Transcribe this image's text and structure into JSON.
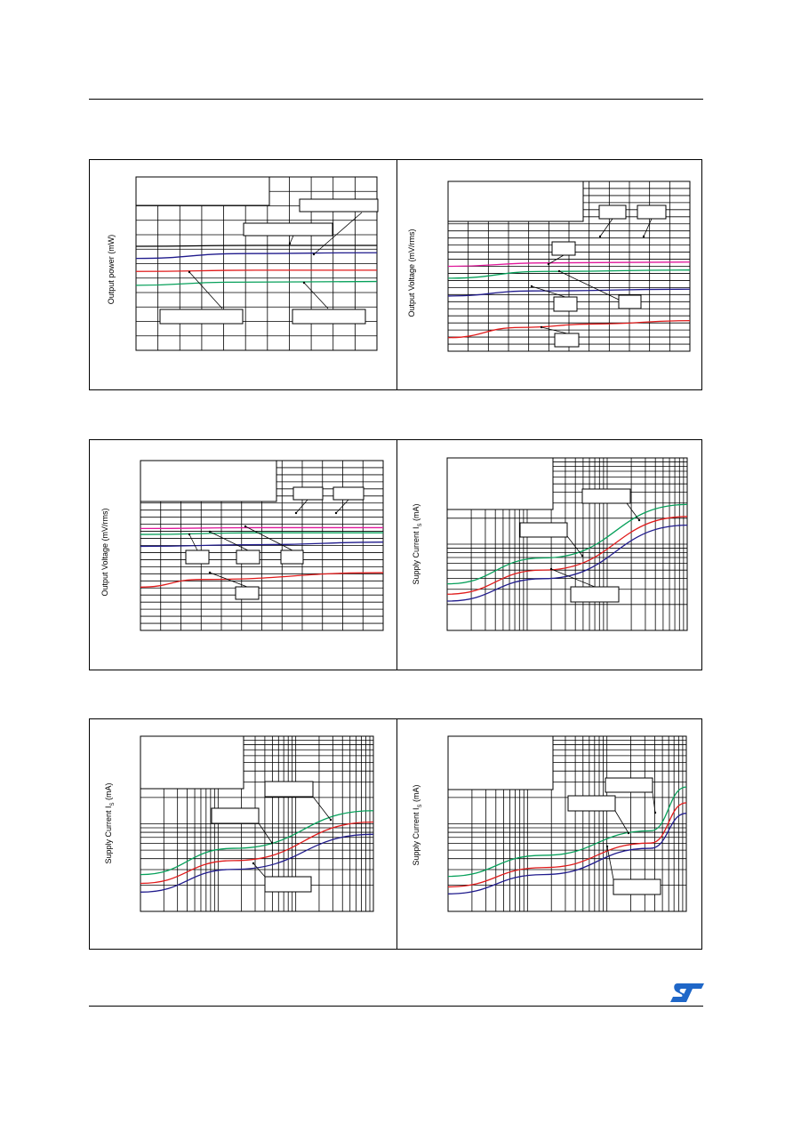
{
  "brand": {
    "logo": "ST",
    "color": "#1f67c8"
  },
  "colors": {
    "black": "#000000",
    "blue": "#1f1a8c",
    "red": "#e01b1b",
    "green": "#06a05a",
    "magenta": "#e0169a"
  },
  "chart_data": [
    {
      "type": "line",
      "ylabel": "Output power (mW)",
      "x_scale": "linear",
      "series": [
        {
          "color": "black",
          "points": [
            [
              0,
              0.6
            ],
            [
              0.5,
              0.605
            ],
            [
              1,
              0.605
            ]
          ]
        },
        {
          "color": "blue",
          "points": [
            [
              0,
              0.53
            ],
            [
              0.45,
              0.558
            ],
            [
              1,
              0.563
            ]
          ]
        },
        {
          "color": "red",
          "points": [
            [
              0,
              0.455
            ],
            [
              0.5,
              0.462
            ],
            [
              1,
              0.462
            ]
          ]
        },
        {
          "color": "green",
          "points": [
            [
              0,
              0.375
            ],
            [
              0.4,
              0.393
            ],
            [
              1,
              0.397
            ]
          ]
        }
      ]
    },
    {
      "type": "line",
      "ylabel": "Output Voltage (mV/rms)",
      "x_scale": "linear",
      "series": [
        {
          "color": "magenta",
          "points": [
            [
              0,
              0.5
            ],
            [
              0.4,
              0.52
            ],
            [
              1,
              0.525
            ]
          ]
        },
        {
          "color": "green",
          "points": [
            [
              0,
              0.43
            ],
            [
              0.4,
              0.47
            ],
            [
              1,
              0.478
            ]
          ]
        },
        {
          "color": "blue",
          "points": [
            [
              0,
              0.325
            ],
            [
              0.35,
              0.355
            ],
            [
              1,
              0.365
            ]
          ]
        },
        {
          "color": "red",
          "points": [
            [
              0,
              0.08
            ],
            [
              0.3,
              0.14
            ],
            [
              0.6,
              0.16
            ],
            [
              1,
              0.18
            ]
          ]
        }
      ]
    },
    {
      "type": "line",
      "ylabel": "Output Voltage (mV/rms)",
      "x_scale": "linear",
      "series": [
        {
          "color": "magenta",
          "points": [
            [
              0,
              0.6
            ],
            [
              0.5,
              0.605
            ],
            [
              1,
              0.605
            ]
          ]
        },
        {
          "color": "green",
          "points": [
            [
              0,
              0.565
            ],
            [
              0.5,
              0.575
            ],
            [
              1,
              0.575
            ]
          ]
        },
        {
          "color": "blue",
          "points": [
            [
              0,
              0.495
            ],
            [
              0.5,
              0.505
            ],
            [
              1,
              0.52
            ]
          ]
        },
        {
          "color": "red",
          "points": [
            [
              0,
              0.255
            ],
            [
              0.25,
              0.3
            ],
            [
              1,
              0.34
            ]
          ]
        }
      ]
    },
    {
      "type": "line",
      "ylabel": "Supply Current I",
      "ylabel_sub": "S",
      "ylabel_unit": "(mA)",
      "x_scale": "log",
      "series": [
        {
          "color": "green",
          "points": [
            [
              0,
              0.27
            ],
            [
              0.4,
              0.42
            ],
            [
              1,
              0.73
            ]
          ]
        },
        {
          "color": "red",
          "points": [
            [
              0,
              0.21
            ],
            [
              0.4,
              0.35
            ],
            [
              1,
              0.66
            ]
          ]
        },
        {
          "color": "blue",
          "points": [
            [
              0,
              0.17
            ],
            [
              0.4,
              0.3
            ],
            [
              1,
              0.61
            ]
          ]
        }
      ]
    },
    {
      "type": "line",
      "ylabel": "Supply Current I",
      "ylabel_sub": "S",
      "ylabel_unit": "(mA)",
      "x_scale": "log",
      "series": [
        {
          "color": "green",
          "points": [
            [
              0,
              0.21
            ],
            [
              0.4,
              0.36
            ],
            [
              1,
              0.575
            ]
          ]
        },
        {
          "color": "red",
          "points": [
            [
              0,
              0.16
            ],
            [
              0.4,
              0.29
            ],
            [
              1,
              0.51
            ]
          ]
        },
        {
          "color": "blue",
          "points": [
            [
              0,
              0.11
            ],
            [
              0.4,
              0.24
            ],
            [
              1,
              0.44
            ]
          ]
        }
      ]
    },
    {
      "type": "line",
      "ylabel": "Supply Current I",
      "ylabel_sub": "S",
      "ylabel_unit": "(mA)",
      "x_scale": "log",
      "series": [
        {
          "color": "green",
          "points": [
            [
              0,
              0.2
            ],
            [
              0.4,
              0.32
            ],
            [
              0.85,
              0.46
            ],
            [
              1,
              0.71
            ]
          ]
        },
        {
          "color": "red",
          "points": [
            [
              0,
              0.14
            ],
            [
              0.4,
              0.25
            ],
            [
              0.85,
              0.39
            ],
            [
              1,
              0.62
            ]
          ]
        },
        {
          "color": "blue",
          "points": [
            [
              0,
              0.1
            ],
            [
              0.4,
              0.21
            ],
            [
              0.85,
              0.36
            ],
            [
              1,
              0.56
            ]
          ]
        }
      ]
    }
  ]
}
